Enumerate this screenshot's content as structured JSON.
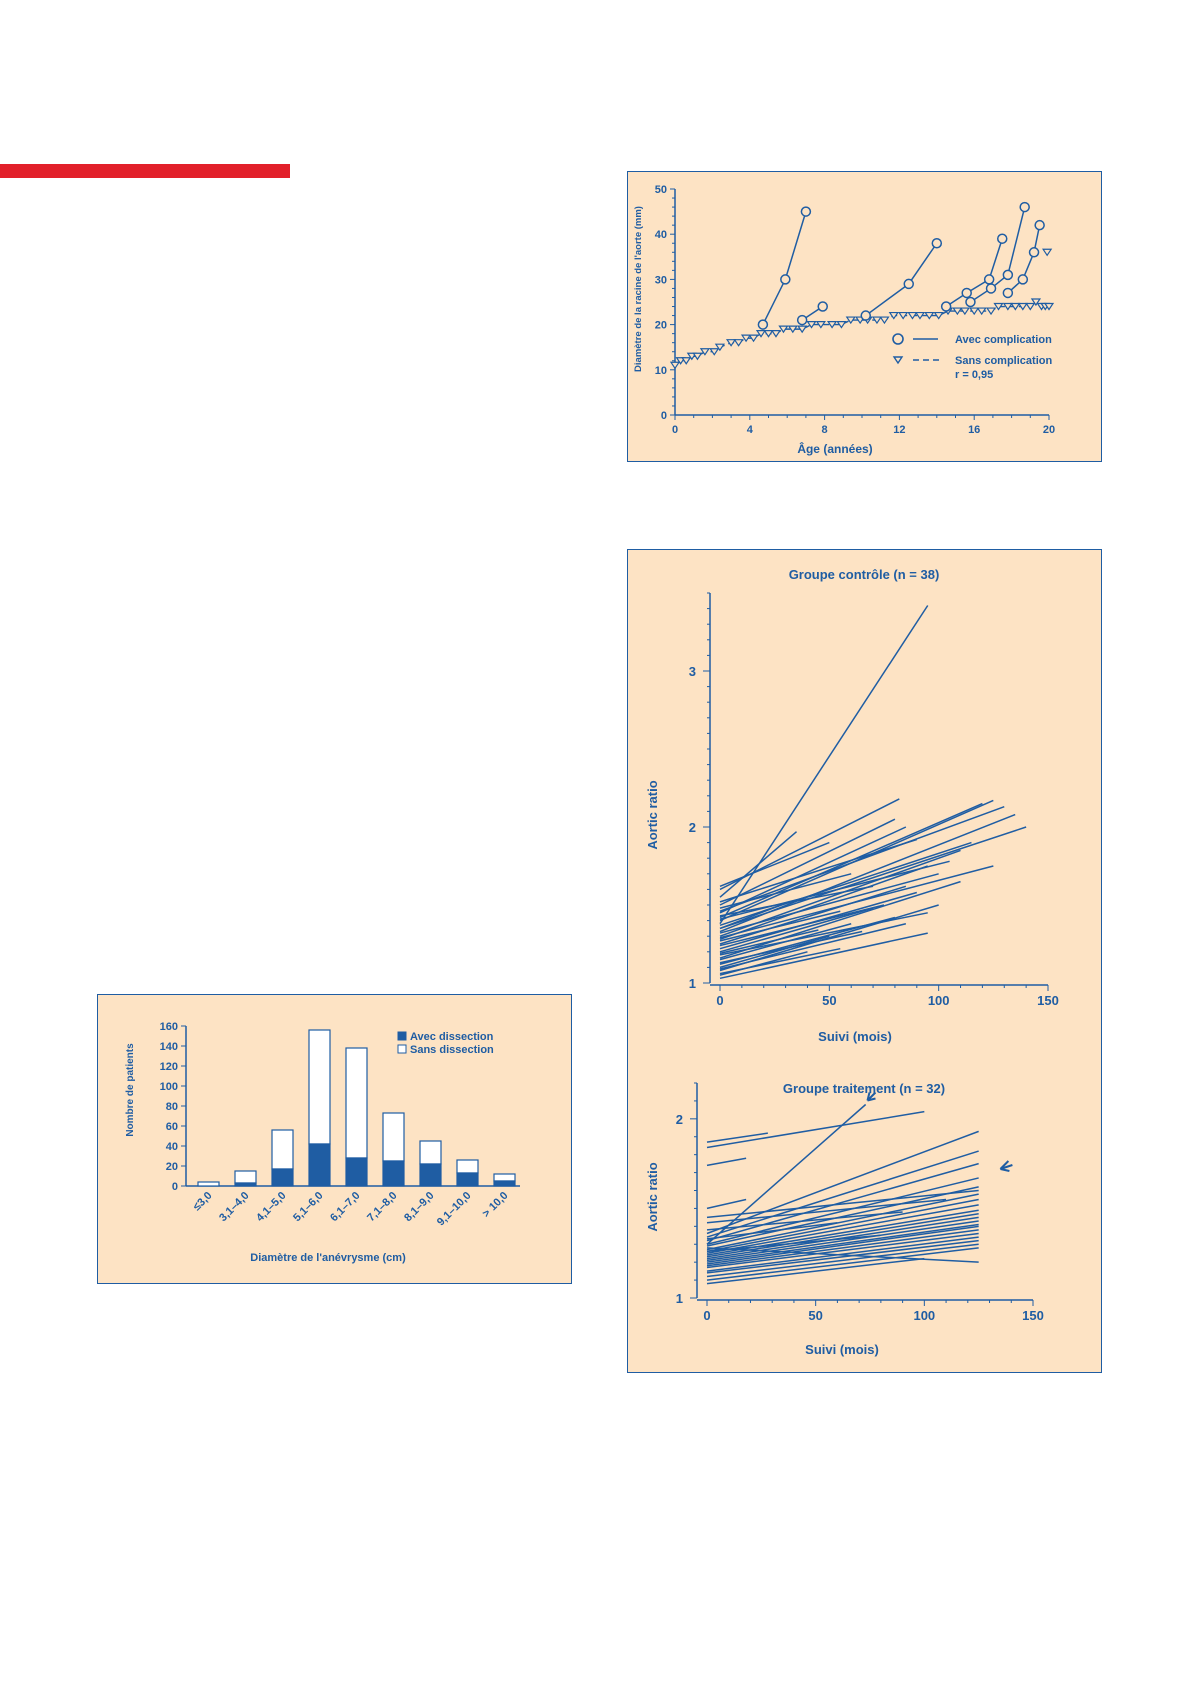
{
  "colors": {
    "accent": "#e2202a",
    "panel_bg": "#fde3c4",
    "ink": "#1f5da3"
  },
  "chart_data": [
    {
      "type": "line",
      "xlabel": "Âge (années)",
      "ylabel": "Diamètre de la racine de l'aorte (mm)",
      "xlim": [
        0,
        20
      ],
      "ylim": [
        0,
        50
      ],
      "x_ticks": [
        "0",
        "4",
        "8",
        "12",
        "16",
        "20"
      ],
      "y_ticks": [
        "0",
        "10",
        "20",
        "30",
        "40",
        "50"
      ],
      "grid": false,
      "legend_position": "bottom-right",
      "legend": {
        "with_label": "Avec complication",
        "without_label": "Sans complication",
        "r_label": "r = 0,95"
      },
      "series_with": [
        {
          "x": [
            4.7,
            5.9,
            7.0
          ],
          "y": [
            20,
            30,
            45
          ]
        },
        {
          "x": [
            6.8,
            7.9
          ],
          "y": [
            21,
            24
          ]
        },
        {
          "x": [
            10.2,
            12.5,
            14.0
          ],
          "y": [
            22,
            29,
            38
          ]
        },
        {
          "x": [
            14.5,
            15.6,
            16.8,
            17.5
          ],
          "y": [
            24,
            27,
            30,
            39
          ]
        },
        {
          "x": [
            15.8,
            16.9,
            17.8,
            18.7
          ],
          "y": [
            25,
            28,
            31,
            46
          ]
        },
        {
          "x": [
            17.8,
            18.6,
            19.2,
            19.5
          ],
          "y": [
            27,
            30,
            36,
            42
          ]
        }
      ],
      "series_without": {
        "x": [
          0,
          0.3,
          0.6,
          0.9,
          1.2,
          1.6,
          2.1,
          2.4,
          3.0,
          3.4,
          3.8,
          4.2,
          4.6,
          5.0,
          5.4,
          5.8,
          6.3,
          6.8,
          7.3,
          7.8,
          8.4,
          8.9,
          9.4,
          9.9,
          10.3,
          10.8,
          11.2,
          11.7,
          12.2,
          12.7,
          13.1,
          13.6,
          14.1,
          14.6,
          15.1,
          15.5,
          16.0,
          16.4,
          16.9,
          17.3,
          17.8,
          18.2,
          18.6,
          19.0,
          19.3,
          19.6,
          19.8,
          20.0
        ],
        "y": [
          11,
          12,
          12,
          13,
          13,
          14,
          14,
          15,
          16,
          16,
          17,
          17,
          18,
          18,
          18,
          19,
          19,
          19,
          20,
          20,
          20,
          20,
          21,
          21,
          21,
          21,
          21,
          22,
          22,
          22,
          22,
          22,
          22,
          23,
          23,
          23,
          23,
          23,
          23,
          24,
          24,
          24,
          24,
          24,
          25,
          24,
          24,
          24
        ]
      },
      "outliers": {
        "x": [
          19.9
        ],
        "y": [
          36
        ]
      }
    },
    {
      "type": "line",
      "title": "Groupe contrôle (n = 38)",
      "xlabel": "Suivi (mois)",
      "ylabel": "Aortic ratio",
      "xlim": [
        0,
        150
      ],
      "ylim": [
        1,
        3.5
      ],
      "x_ticks": [
        "0",
        "50",
        "100",
        "150"
      ],
      "y_ticks": [
        "1",
        "2",
        "3"
      ],
      "grid": false,
      "segments": [
        [
          0,
          1.38,
          95,
          3.42
        ],
        [
          0,
          1.55,
          35,
          1.97
        ],
        [
          0,
          1.6,
          82,
          2.18
        ],
        [
          0,
          1.5,
          80,
          2.05
        ],
        [
          0,
          1.45,
          85,
          2.0
        ],
        [
          0,
          1.42,
          120,
          2.15
        ],
        [
          0,
          1.4,
          125,
          2.17
        ],
        [
          0,
          1.35,
          140,
          2.0
        ],
        [
          0,
          1.33,
          135,
          2.08
        ],
        [
          0,
          1.3,
          110,
          1.85
        ],
        [
          0,
          1.28,
          95,
          1.75
        ],
        [
          0,
          1.25,
          85,
          1.62
        ],
        [
          0,
          1.22,
          90,
          1.58
        ],
        [
          0,
          1.2,
          70,
          1.48
        ],
        [
          0,
          1.18,
          95,
          1.45
        ],
        [
          0,
          1.15,
          60,
          1.38
        ],
        [
          0,
          1.12,
          80,
          1.42
        ],
        [
          0,
          1.1,
          50,
          1.3
        ],
        [
          0,
          1.08,
          100,
          1.5
        ],
        [
          0,
          1.05,
          40,
          1.2
        ],
        [
          0,
          1.62,
          50,
          1.9
        ],
        [
          0,
          1.48,
          60,
          1.7
        ],
        [
          0,
          1.43,
          70,
          1.62
        ],
        [
          0,
          1.37,
          115,
          1.9
        ],
        [
          0,
          1.32,
          100,
          1.7
        ],
        [
          0,
          1.27,
          55,
          1.46
        ],
        [
          0,
          1.24,
          75,
          1.5
        ],
        [
          0,
          1.19,
          45,
          1.34
        ],
        [
          0,
          1.16,
          110,
          1.65
        ],
        [
          0,
          1.13,
          65,
          1.33
        ],
        [
          0,
          1.09,
          85,
          1.38
        ],
        [
          0,
          1.06,
          55,
          1.22
        ],
        [
          0,
          1.03,
          95,
          1.32
        ],
        [
          0,
          1.35,
          28,
          1.5
        ],
        [
          0,
          1.52,
          90,
          1.92
        ],
        [
          0,
          1.46,
          130,
          2.13
        ],
        [
          0,
          1.41,
          105,
          1.78
        ],
        [
          0,
          1.29,
          125,
          1.75
        ]
      ]
    },
    {
      "type": "line",
      "title": "Groupe traitement (n = 32)",
      "xlabel": "Suivi (mois)",
      "ylabel": "Aortic ratio",
      "xlim": [
        0,
        150
      ],
      "ylim": [
        1,
        2.2
      ],
      "x_ticks": [
        "0",
        "50",
        "100",
        "150"
      ],
      "y_ticks": [
        "1",
        "2"
      ],
      "grid": false,
      "segments": [
        [
          0,
          1.87,
          28,
          1.92
        ],
        [
          0,
          1.84,
          100,
          2.04
        ],
        [
          0,
          1.74,
          18,
          1.78
        ],
        [
          0,
          1.5,
          18,
          1.55
        ],
        [
          0,
          1.3,
          73,
          2.08
        ],
        [
          0,
          1.36,
          125,
          1.93
        ],
        [
          0,
          1.34,
          125,
          1.82
        ],
        [
          0,
          1.32,
          125,
          1.75
        ],
        [
          0,
          1.3,
          125,
          1.67
        ],
        [
          0,
          1.29,
          125,
          1.62
        ],
        [
          0,
          1.27,
          125,
          1.58
        ],
        [
          0,
          1.26,
          125,
          1.55
        ],
        [
          0,
          1.25,
          125,
          1.52
        ],
        [
          0,
          1.24,
          125,
          1.49
        ],
        [
          0,
          1.23,
          125,
          1.47
        ],
        [
          0,
          1.22,
          125,
          1.45
        ],
        [
          0,
          1.21,
          125,
          1.43
        ],
        [
          0,
          1.2,
          125,
          1.41
        ],
        [
          0,
          1.19,
          125,
          1.4
        ],
        [
          0,
          1.18,
          125,
          1.38
        ],
        [
          0,
          1.17,
          125,
          1.36
        ],
        [
          0,
          1.15,
          125,
          1.34
        ],
        [
          0,
          1.14,
          125,
          1.32
        ],
        [
          0,
          1.12,
          125,
          1.3
        ],
        [
          0,
          1.1,
          125,
          1.28
        ],
        [
          0,
          1.28,
          125,
          1.2
        ],
        [
          0,
          1.38,
          90,
          1.48
        ],
        [
          0,
          1.42,
          110,
          1.55
        ],
        [
          0,
          1.33,
          60,
          1.42
        ],
        [
          0,
          1.26,
          80,
          1.35
        ],
        [
          0,
          1.45,
          125,
          1.6
        ],
        [
          0,
          1.08,
          100,
          1.22
        ]
      ],
      "arrow_markers": [
        [
          72,
          2.08
        ],
        [
          135,
          1.72
        ]
      ]
    },
    {
      "type": "bar",
      "xlabel": "Diamètre de l'anévrysme (cm)",
      "ylabel": "Nombre de patients",
      "categories": [
        "≤3,0",
        "3,1–4,0",
        "4,1–5,0",
        "5,1–6,0",
        "6,1–7,0",
        "7,1–8,0",
        "8,1–9,0",
        "9,1–10,0",
        "> 10,0"
      ],
      "ylim": [
        0,
        160
      ],
      "y_ticks": [
        "0",
        "20",
        "40",
        "60",
        "80",
        "100",
        "120",
        "140",
        "160"
      ],
      "grid": false,
      "legend_position": "top-right",
      "series": [
        {
          "name": "Avec dissection",
          "values": [
            0,
            3,
            17,
            42,
            28,
            25,
            22,
            13,
            5
          ]
        },
        {
          "name": "Sans dissection",
          "values": [
            4,
            12,
            39,
            114,
            110,
            48,
            23,
            13,
            7
          ]
        }
      ]
    }
  ]
}
